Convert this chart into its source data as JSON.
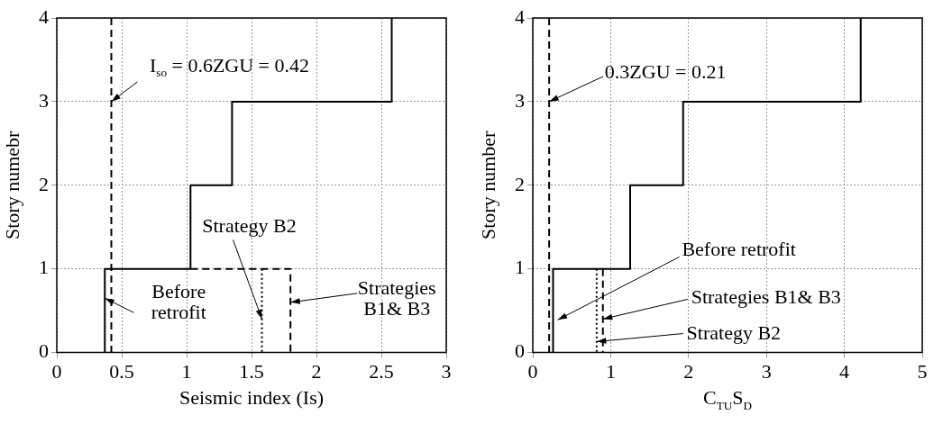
{
  "chart_data": [
    {
      "type": "line",
      "xlabel": "Seismic index (Is)",
      "ylabel": "Story numebr",
      "xlim": [
        0,
        3
      ],
      "xticks": [
        0,
        0.5,
        1,
        1.5,
        2,
        2.5,
        3
      ],
      "ylim": [
        0,
        4
      ],
      "yticks": [
        0,
        1,
        2,
        3,
        4
      ],
      "grid": true,
      "marker": "none",
      "series": [
        {
          "color": "#000000",
          "line_style": "solid",
          "x": [
            0.37,
            0.37,
            1.03,
            1.03,
            1.35,
            1.35,
            2.58,
            2.58
          ],
          "values": [
            0,
            1,
            1,
            2,
            2,
            3,
            3,
            4
          ]
        },
        {
          "color": "#000000",
          "line_style": "dashed",
          "x": [
            1.03,
            1.8,
            1.8
          ],
          "values": [
            1,
            1,
            0
          ]
        },
        {
          "color": "#000000",
          "line_style": "dotted",
          "x": [
            1.58,
            1.58
          ],
          "values": [
            1,
            0
          ]
        }
      ],
      "ref_lines": [
        {
          "axis": "x",
          "value": 0.42,
          "label": "I$_{so}$ = 0.6ZGU = 0.42",
          "color": "#000000",
          "line_style": "dashed"
        }
      ],
      "annotations": [
        {
          "text": "Before retrofit",
          "x": 0.37,
          "y": 0.65
        },
        {
          "text": "Strategy B2",
          "x": 1.58,
          "y": 0.4
        },
        {
          "text": "Strategies B1& B3",
          "x": 1.8,
          "y": 0.6
        }
      ]
    },
    {
      "type": "line",
      "xlabel": "C$_{TU}$S$_{D}$",
      "ylabel": "Story number",
      "xlim": [
        0,
        5
      ],
      "xticks": [
        0,
        1,
        2,
        3,
        4,
        5
      ],
      "ylim": [
        0,
        4
      ],
      "yticks": [
        0,
        1,
        2,
        3,
        4
      ],
      "grid": true,
      "marker": "none",
      "series": [
        {
          "color": "#000000",
          "line_style": "solid",
          "x": [
            0.26,
            0.26,
            1.25,
            1.25,
            1.93,
            1.93,
            4.21,
            4.21
          ],
          "values": [
            0,
            1,
            1,
            2,
            2,
            3,
            3,
            4
          ]
        },
        {
          "color": "#000000",
          "line_style": "dashed",
          "x": [
            0.9,
            0.9
          ],
          "values": [
            1,
            0
          ]
        },
        {
          "color": "#000000",
          "line_style": "dotted",
          "x": [
            0.82,
            0.82
          ],
          "values": [
            1,
            0
          ]
        }
      ],
      "ref_lines": [
        {
          "axis": "x",
          "value": 0.21,
          "label": "0.3ZGU = 0.21",
          "color": "#000000",
          "line_style": "dashed"
        }
      ],
      "annotations": [
        {
          "text": "Before retrofit",
          "x": 0.32,
          "y": 0.39
        },
        {
          "text": "Strategies B1& B3",
          "x": 0.9,
          "y": 0.4
        },
        {
          "text": "Strategy B2",
          "x": 0.82,
          "y": 0.13
        }
      ]
    }
  ]
}
